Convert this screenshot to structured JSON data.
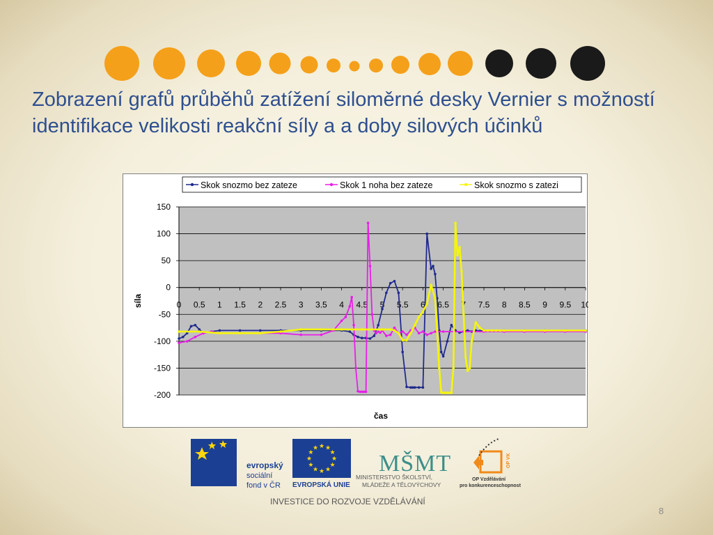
{
  "slide": {
    "title": "Zobrazení grafů průběhů zatížení siloměrné desky Vernier s možností identifikace velikosti reakční síly a a doby silových účinků",
    "page_number": "8",
    "colors": {
      "orange_dot": "#f5a01a",
      "black_dot": "#1a1a1a",
      "title": "#2e4f8f"
    }
  },
  "logos": {
    "esf_mark": "esf",
    "esf_text": [
      "evropský",
      "sociální",
      "fond v ČR"
    ],
    "eu_label": "EVROPSKÁ UNIE",
    "msmt_mark": "MŠMT",
    "msmt_text": [
      "MINISTERSTVO ŠKOLSTVÍ,",
      "MLÁDEŽE A TĚLOVÝCHOVY"
    ],
    "op_text": [
      "OP Vzdělávání",
      "pro konkurenceschopnost"
    ],
    "op_side": "OP VK",
    "tagline": "INVESTICE DO ROZVOJE VZDĚLÁVÁNÍ"
  },
  "chart_data": {
    "type": "line",
    "xlabel": "čas",
    "ylabel": "síla",
    "xlim": [
      0,
      10
    ],
    "ylim": [
      -200,
      150
    ],
    "x_ticks": [
      "0",
      "0.5",
      "1",
      "1.5",
      "2",
      "2.5",
      "3",
      "3.5",
      "4",
      "4.5",
      "5",
      "5.5",
      "6",
      "6.5",
      "7",
      "7.5",
      "8",
      "8.5",
      "9",
      "9.5",
      "10"
    ],
    "y_ticks": [
      "150",
      "100",
      "50",
      "0",
      "-50",
      "-100",
      "-150",
      "-200"
    ],
    "grid": true,
    "legend_position": "top",
    "plot_background": "#c0c0c0",
    "series": [
      {
        "name": "Skok snozmo bez zateze",
        "color": "#1f2a8c",
        "x": [
          0,
          0.1,
          0.2,
          0.3,
          0.4,
          0.5,
          0.6,
          0.8,
          1,
          1.5,
          2,
          2.5,
          3,
          3.5,
          4,
          4.2,
          4.3,
          4.4,
          4.5,
          4.6,
          4.7,
          4.8,
          4.9,
          5,
          5.1,
          5.2,
          5.3,
          5.4,
          5.5,
          5.6,
          5.7,
          5.75,
          5.8,
          5.9,
          6,
          6.1,
          6.2,
          6.25,
          6.3,
          6.35,
          6.4,
          6.45,
          6.5,
          6.6,
          6.7,
          6.8,
          6.9,
          7,
          7.1,
          7.2,
          7.3,
          7.4,
          7.5,
          8,
          8.5,
          9,
          9.5,
          10
        ],
        "y": [
          -95,
          -92,
          -85,
          -72,
          -70,
          -78,
          -85,
          -82,
          -80,
          -80,
          -80,
          -80,
          -80,
          -80,
          -80,
          -82,
          -88,
          -92,
          -94,
          -94,
          -95,
          -90,
          -70,
          -40,
          -10,
          8,
          12,
          -10,
          -120,
          -185,
          -186,
          -186,
          -186,
          -186,
          -186,
          100,
          35,
          40,
          25,
          -20,
          -80,
          -120,
          -128,
          -100,
          -70,
          -80,
          -84,
          -82,
          -80,
          -82,
          -80,
          -81,
          -80,
          -80,
          -80,
          -80,
          -80,
          -80
        ]
      },
      {
        "name": "Skok 1 noha bez zateze",
        "color": "#e81ee8",
        "x": [
          0,
          0.2,
          0.4,
          0.6,
          0.8,
          1,
          1.5,
          2,
          2.5,
          3,
          3.5,
          3.8,
          4,
          4.1,
          4.2,
          4.25,
          4.3,
          4.35,
          4.4,
          4.45,
          4.5,
          4.55,
          4.6,
          4.65,
          4.7,
          4.75,
          4.8,
          4.85,
          4.9,
          4.95,
          5,
          5.1,
          5.2,
          5.3,
          5.4,
          5.5,
          5.6,
          5.7,
          5.8,
          5.9,
          6,
          6.1,
          6.2,
          6.3,
          6.5,
          7,
          7.5,
          8,
          8.5,
          9,
          9.5,
          10
        ],
        "y": [
          -103,
          -100,
          -92,
          -85,
          -82,
          -85,
          -85,
          -85,
          -85,
          -88,
          -88,
          -80,
          -62,
          -55,
          -35,
          -18,
          -70,
          -150,
          -193,
          -194,
          -194,
          -194,
          -194,
          120,
          40,
          -50,
          -80,
          -85,
          -82,
          -84,
          -80,
          -90,
          -88,
          -75,
          -85,
          -82,
          -88,
          -80,
          -75,
          -85,
          -82,
          -88,
          -85,
          -82,
          -82,
          -82,
          -82,
          -82,
          -82,
          -82,
          -82,
          -82
        ]
      },
      {
        "name": "Skok snozmo s zatezi",
        "color": "#f5f50a",
        "x": [
          0,
          0.5,
          1,
          1.5,
          2,
          2.5,
          3,
          3.5,
          4,
          4.5,
          5,
          5.2,
          5.3,
          5.4,
          5.5,
          5.6,
          5.7,
          5.8,
          5.9,
          6,
          6.1,
          6.2,
          6.3,
          6.35,
          6.4,
          6.45,
          6.5,
          6.55,
          6.6,
          6.65,
          6.7,
          6.75,
          6.8,
          6.85,
          6.9,
          6.95,
          7,
          7.05,
          7.1,
          7.15,
          7.2,
          7.3,
          7.4,
          7.5,
          7.6,
          7.7,
          7.8,
          7.9,
          8,
          8.5,
          9,
          9.5,
          10
        ],
        "y": [
          -82,
          -82,
          -85,
          -85,
          -85,
          -82,
          -78,
          -78,
          -78,
          -78,
          -78,
          -78,
          -80,
          -85,
          -98,
          -98,
          -85,
          -70,
          -55,
          -45,
          -30,
          5,
          -20,
          -80,
          -150,
          -195,
          -196,
          -196,
          -196,
          -196,
          -196,
          -150,
          120,
          60,
          75,
          30,
          -50,
          -130,
          -155,
          -150,
          -100,
          -65,
          -75,
          -80,
          -80,
          -80,
          -80,
          -80,
          -80,
          -80,
          -80,
          -80,
          -80
        ]
      }
    ]
  }
}
